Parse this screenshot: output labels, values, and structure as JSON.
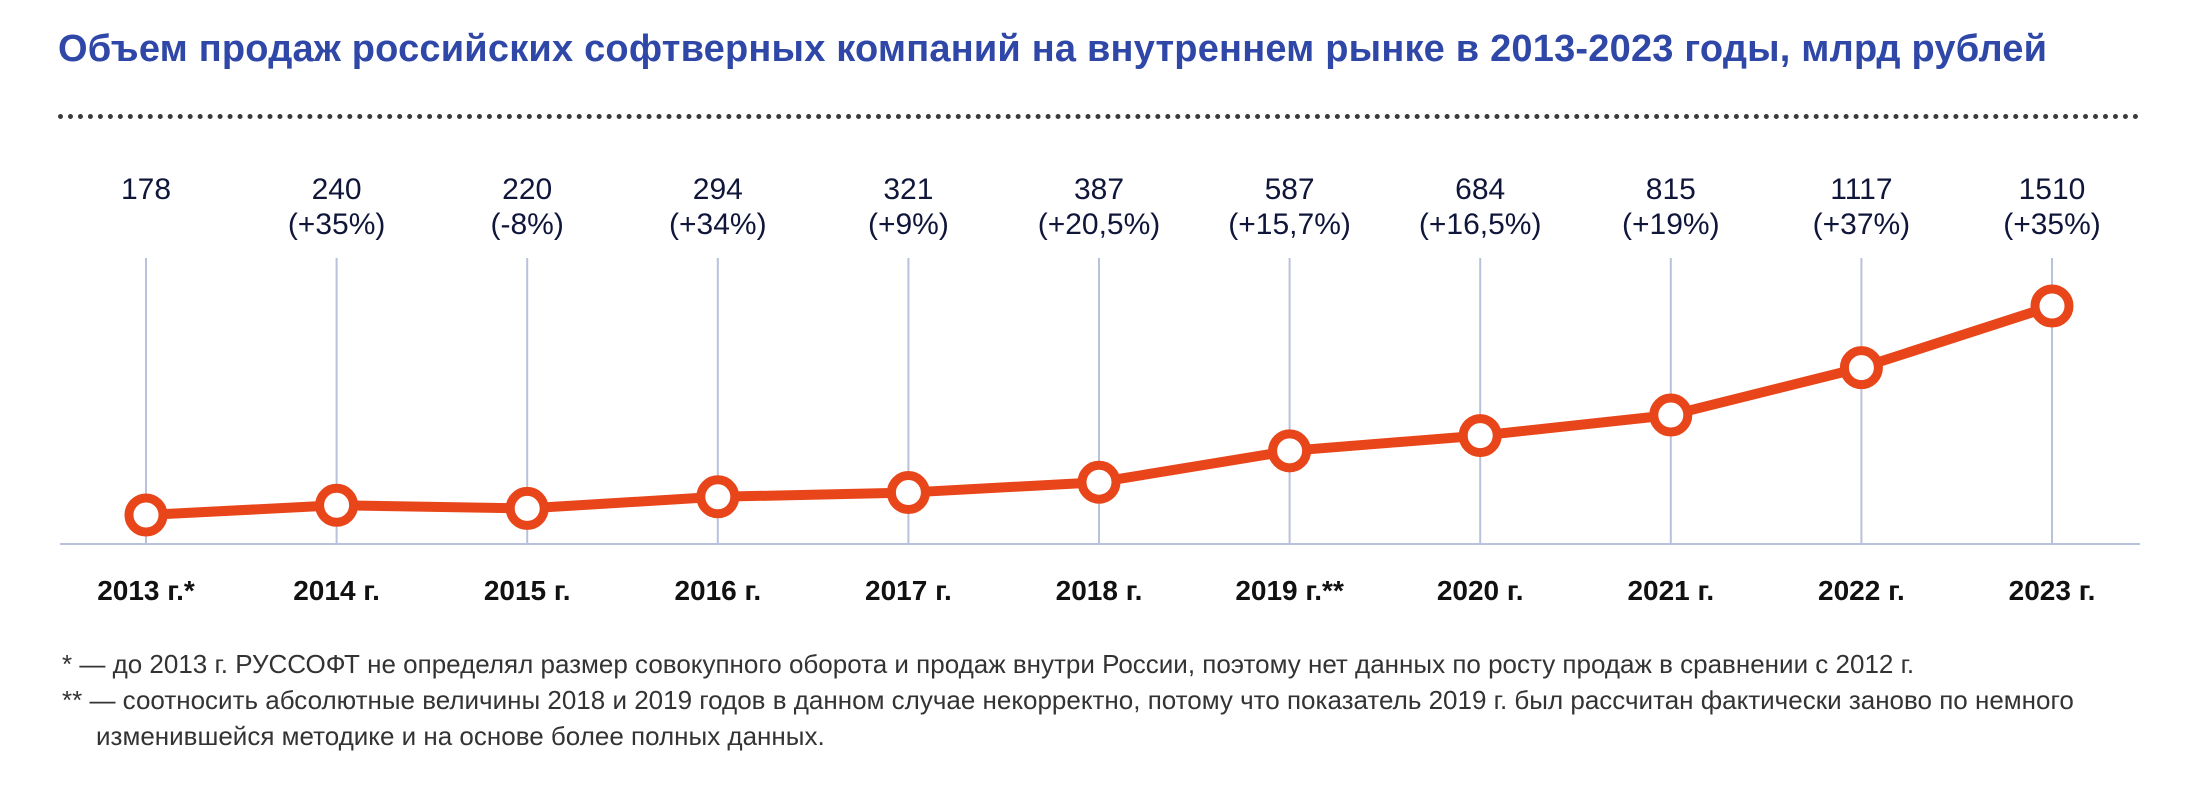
{
  "title": "Объем продаж российских софтверных компаний на внутреннем рынке в 2013-2023 годы, млрд рублей",
  "chart_data": {
    "type": "line",
    "categories": [
      "2013 г.*",
      "2014 г.",
      "2015 г.",
      "2016 г.",
      "2017 г.",
      "2018 г.",
      "2019 г.**",
      "2020 г.",
      "2021 г.",
      "2022 г.",
      "2023 г."
    ],
    "values": [
      178,
      240,
      220,
      294,
      321,
      387,
      587,
      684,
      815,
      1117,
      1510
    ],
    "value_labels": [
      "178",
      "240",
      "220",
      "294",
      "321",
      "387",
      "587",
      "684",
      "815",
      "1117",
      "1510"
    ],
    "growth_labels": [
      "",
      "(+35%)",
      "(-8%)",
      "(+34%)",
      "(+9%)",
      "(+20,5%)",
      "(+15,7%)",
      "(+16,5%)",
      "(+19%)",
      "(+37%)",
      "(+35%)"
    ],
    "ylim": [
      0,
      1510
    ],
    "grid": "vertical",
    "line_color": "#e8461a",
    "grid_color": "#b9c2dc"
  },
  "footnotes": {
    "note1": "* — до 2013 г. РУССОФТ не определял размер совокупного оборота и продаж внутри России, поэтому нет данных по росту продаж в сравнении с 2012 г.",
    "note2": "** — соотносить абсолютные величины 2018 и 2019 годов в данном случае некорректно, потому что показатель 2019 г. был рассчитан фактически заново по немного изменившейся методике и на основе более полных данных."
  }
}
